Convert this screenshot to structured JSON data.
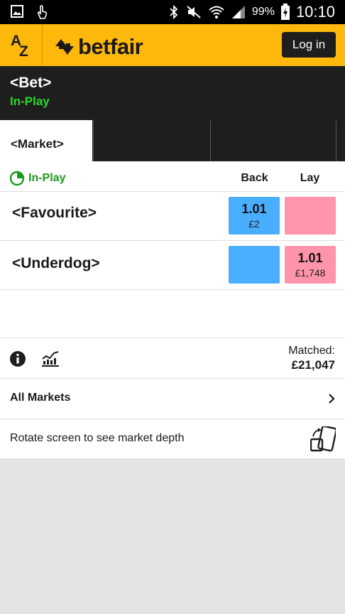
{
  "status_bar": {
    "icons": [
      "gallery-icon",
      "touch-icon",
      "bluetooth-icon",
      "mute-icon",
      "wifi-icon",
      "signal-icon",
      "battery-icon"
    ],
    "battery_percent": "99%",
    "time": "10:10"
  },
  "header": {
    "az_a": "A",
    "az_z": "Z",
    "logo_text": "betfair",
    "login_label": "Log in",
    "brand_color": "#ffb80c"
  },
  "bet": {
    "title": "<Bet>",
    "status": "In-Play"
  },
  "tabs": [
    {
      "label": "<Market>",
      "active": true
    },
    {
      "label": "",
      "active": false
    },
    {
      "label": "",
      "active": false
    },
    {
      "label": "",
      "active": false
    }
  ],
  "market": {
    "status": "In-Play",
    "back_header": "Back",
    "lay_header": "Lay",
    "runners": [
      {
        "name": "<Favourite>",
        "back_odds": "1.01",
        "back_stake": "£2",
        "lay_odds": "",
        "lay_stake": ""
      },
      {
        "name": "<Underdog>",
        "back_odds": "",
        "back_stake": "",
        "lay_odds": "1.01",
        "lay_stake": "£1,748"
      }
    ],
    "matched_label": "Matched:",
    "matched_value": "£21,047",
    "all_markets_label": "All Markets",
    "rotate_text": "Rotate screen to see market depth",
    "back_color": "#4aaeff",
    "lay_color": "#ff94ab"
  }
}
